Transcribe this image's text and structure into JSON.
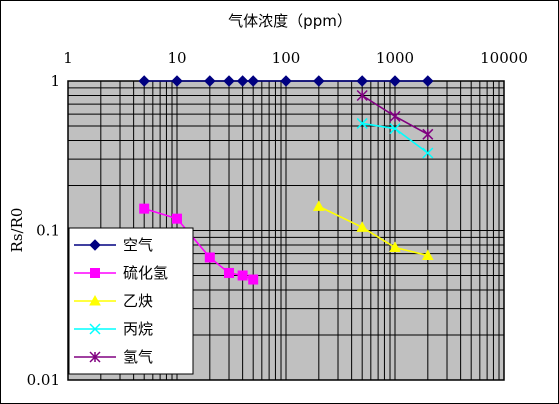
{
  "chart_data": {
    "type": "line",
    "title": "气体浓度（ppm）",
    "xlabel": "",
    "ylabel": "Rs/R0",
    "x_scale": "log",
    "y_scale": "log",
    "xlim": [
      1,
      10000
    ],
    "ylim": [
      0.01,
      1
    ],
    "x_tick_labels": [
      "1",
      "10",
      "100",
      "1000",
      "10000"
    ],
    "x_tick_values": [
      1,
      10,
      100,
      1000,
      10000
    ],
    "y_tick_labels": [
      "1",
      "0.1",
      "0.01"
    ],
    "y_tick_values": [
      1,
      0.1,
      0.01
    ],
    "grid": true,
    "legend_position": "bottom-left",
    "series": [
      {
        "name": "空气",
        "color": "#000080",
        "marker": "diamond",
        "x": [
          5,
          10,
          20,
          30,
          40,
          50,
          100,
          200,
          500,
          1000,
          2000
        ],
        "y": [
          1,
          1,
          1,
          1,
          1,
          1,
          1,
          1,
          1,
          1,
          1
        ]
      },
      {
        "name": "硫化氢",
        "color": "#ff00ff",
        "marker": "square",
        "x": [
          5,
          10,
          20,
          30,
          40,
          50
        ],
        "y": [
          0.14,
          0.12,
          0.066,
          0.052,
          0.05,
          0.047
        ]
      },
      {
        "name": "乙炔",
        "color": "#ffff00",
        "marker": "triangle",
        "x": [
          200,
          500,
          1000,
          2000
        ],
        "y": [
          0.145,
          0.105,
          0.077,
          0.068
        ]
      },
      {
        "name": "丙烷",
        "color": "#00ffff",
        "marker": "x",
        "x": [
          500,
          1000,
          2000
        ],
        "y": [
          0.52,
          0.48,
          0.33
        ]
      },
      {
        "name": "氢气",
        "color": "#800080",
        "marker": "star",
        "x": [
          500,
          1000,
          2000
        ],
        "y": [
          0.8,
          0.58,
          0.44
        ]
      }
    ]
  }
}
